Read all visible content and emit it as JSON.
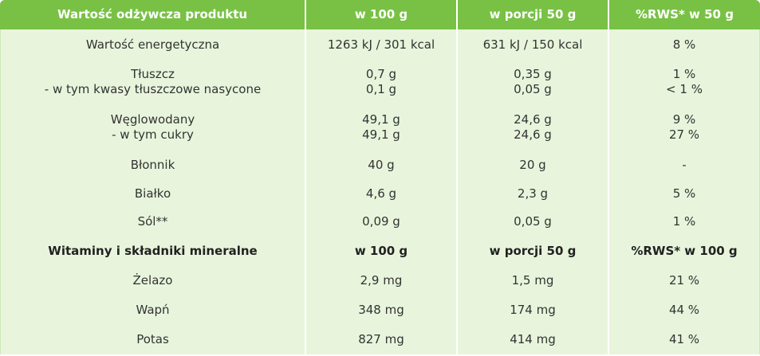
{
  "sections": [
    {
      "header": [
        "Wartość odżywcza produktu",
        "w 100 g",
        "w porcji 50 g",
        "%RWS* w 50 g"
      ],
      "rows": [
        [
          [
            "Wartość energetyczna"
          ],
          [
            "1263 kJ / 301 kcal"
          ],
          [
            "631 kJ / 150 kcal"
          ],
          [
            "8 %"
          ]
        ],
        [
          [
            "Tłuszcz",
            "- w tym kwasy tłuszczowe nasycone"
          ],
          [
            "0,7 g",
            "0,1 g"
          ],
          [
            "0,35 g",
            "0,05 g"
          ],
          [
            "1 %",
            "< 1 %"
          ]
        ],
        [
          [
            "Węglowodany",
            "- w tym cukry"
          ],
          [
            "49,1 g",
            "49,1 g"
          ],
          [
            "24,6 g",
            "24,6 g"
          ],
          [
            "9 %",
            "27 %"
          ]
        ],
        [
          [
            "Błonnik"
          ],
          [
            "40 g"
          ],
          [
            "20 g"
          ],
          [
            "-"
          ]
        ],
        [
          [
            "Białko"
          ],
          [
            "4,6 g"
          ],
          [
            "2,3 g"
          ],
          [
            "5 %"
          ]
        ],
        [
          [
            "Sól**"
          ],
          [
            "0,09 g"
          ],
          [
            "0,05 g"
          ],
          [
            "1 %"
          ]
        ]
      ]
    },
    {
      "header": [
        "Witaminy i składniki mineralne",
        "w 100 g",
        "w porcji 50 g",
        "%RWS* w 100 g"
      ],
      "rows": [
        [
          [
            "Żelazo"
          ],
          [
            "2,9 mg"
          ],
          [
            "1,5 mg"
          ],
          [
            "21 %"
          ]
        ],
        [
          [
            "Wapń"
          ],
          [
            "348 mg"
          ],
          [
            "174 mg"
          ],
          [
            "44 %"
          ]
        ],
        [
          [
            "Potas"
          ],
          [
            "827 mg"
          ],
          [
            "414 mg"
          ],
          [
            "41 %"
          ]
        ]
      ]
    }
  ]
}
